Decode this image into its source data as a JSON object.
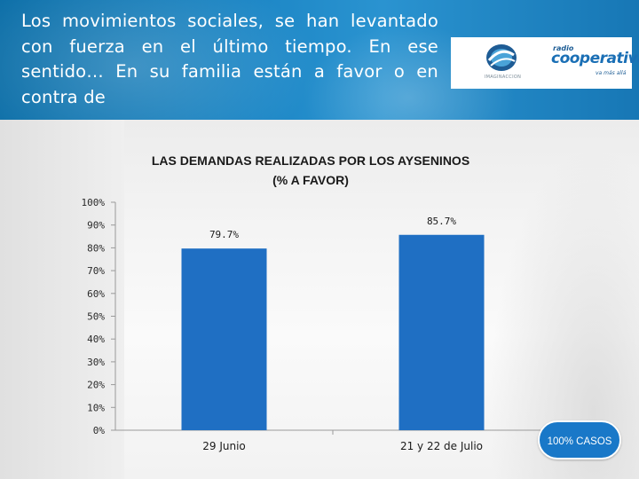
{
  "header": {
    "question": "Los movimientos sociales, se han levantado con fuerza en el último tiempo. En ese sentido… En su familia están a favor o en contra de",
    "logo_left_text": "IMAGINACCION",
    "logo_right_small": "radio",
    "logo_right_big": "cooperativa",
    "logo_right_tagline": "va más allá"
  },
  "badge": {
    "label": "100% CASOS"
  },
  "colors": {
    "bar": "#1f6fc3",
    "header": "#1d87c6",
    "badge": "#1978c8"
  },
  "chart_data": {
    "type": "bar",
    "title": "LAS DEMANDAS REALIZADAS POR LOS AYSENINOS",
    "subtitle": "(% A FAVOR)",
    "categories": [
      "29 Junio",
      "21 y 22 de Julio"
    ],
    "values": [
      79.7,
      85.7
    ],
    "value_labels": [
      "79.7%",
      "85.7%"
    ],
    "ylim": [
      0,
      100
    ],
    "yticks": [
      0,
      10,
      20,
      30,
      40,
      50,
      60,
      70,
      80,
      90,
      100
    ],
    "ytick_labels": [
      "0%",
      "10%",
      "20%",
      "30%",
      "40%",
      "50%",
      "60%",
      "70%",
      "80%",
      "90%",
      "100%"
    ],
    "xlabel": "",
    "ylabel": "",
    "grid": false,
    "legend": "none"
  }
}
